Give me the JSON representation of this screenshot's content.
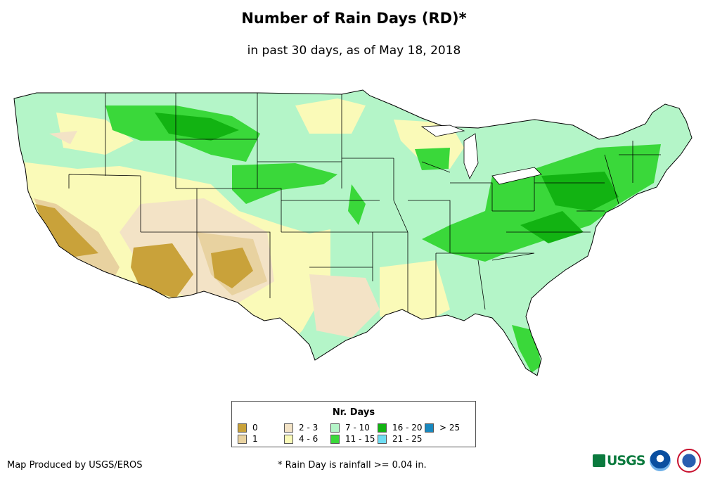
{
  "title": "Number of Rain Days (RD)*",
  "subtitle": "in past 30 days, as of May 18, 2018",
  "legend": {
    "title": "Nr. Days",
    "items": [
      {
        "label": "0",
        "color": "#c9a23a"
      },
      {
        "label": "1",
        "color": "#e8d2a0"
      },
      {
        "label": "2 - 3",
        "color": "#f3e3c6"
      },
      {
        "label": "4 - 6",
        "color": "#fafab8"
      },
      {
        "label": "7 - 10",
        "color": "#b4f5c8"
      },
      {
        "label": "11 - 15",
        "color": "#3ad83a"
      },
      {
        "label": "16 - 20",
        "color": "#12b312"
      },
      {
        "label": "21 - 25",
        "color": "#6fdcf2"
      },
      {
        "label": "> 25",
        "color": "#1888bf"
      }
    ]
  },
  "credit": "Map Produced by USGS/EROS",
  "footnote": "* Rain Day is rainfall >= 0.04 in.",
  "logos": {
    "usgs": "USGS",
    "usgs_icon": "usgs-wave-icon",
    "noaa_icon": "noaa-logo-icon",
    "nws_icon": "nws-logo-icon"
  }
}
